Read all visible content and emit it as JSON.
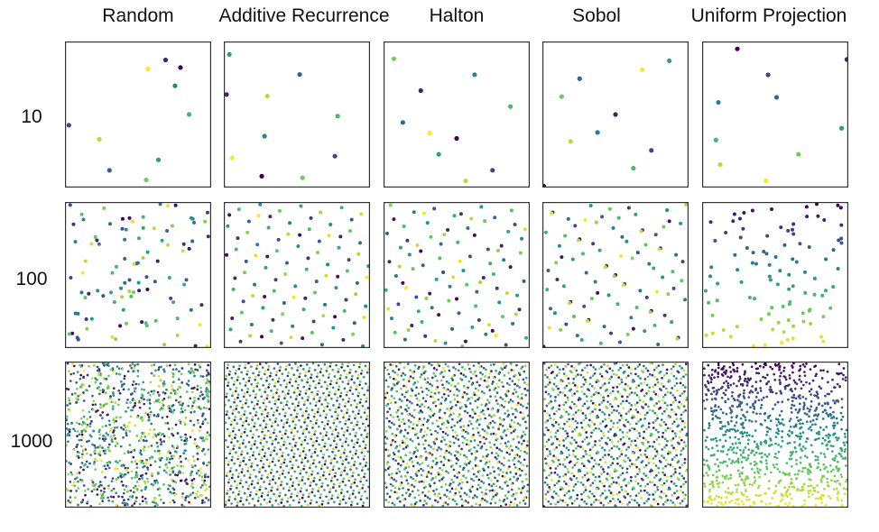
{
  "chart_data": {
    "type": "scatter",
    "columns": [
      "Random",
      "Additive Recurrence",
      "Halton",
      "Sobol",
      "Uniform Projection"
    ],
    "rows": [
      "10",
      "100",
      "1000"
    ],
    "xlim": [
      0,
      1
    ],
    "ylim": [
      0,
      1
    ],
    "axes_visible": false,
    "grid": false,
    "colormap": "viridis",
    "color_by": "point index",
    "colors": [
      "#440154",
      "#3b528b",
      "#21918c",
      "#5ec962",
      "#fde725"
    ],
    "methods": [
      "random",
      "additive_recurrence",
      "halton",
      "sobol",
      "uniform_projection"
    ],
    "point_counts": [
      10,
      100,
      1000
    ]
  }
}
